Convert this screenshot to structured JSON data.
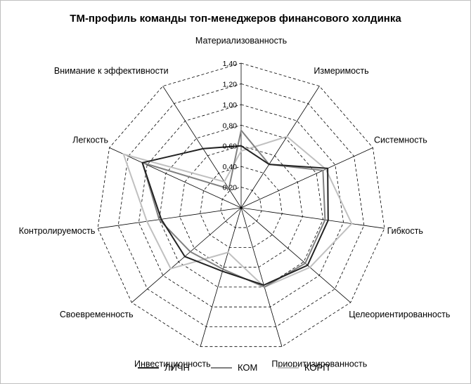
{
  "chart_data": {
    "type": "radar",
    "title": "ТМ-профиль команды топ-менеджеров финансового холдинка",
    "axes": [
      "Материализованность",
      "Измеримость",
      "Системность",
      "Гибкость",
      "Целеориентированность",
      "Приоритизированность",
      "Инвестиционность",
      "Своевременность",
      "Контролируемость",
      "Легкость",
      "Внимание к эффективности"
    ],
    "r_ticks": [
      "0,20",
      "0,40",
      "0,60",
      "0,80",
      "1,00",
      "1,20",
      "1,40"
    ],
    "r_range": [
      0,
      1.4
    ],
    "grid": true,
    "legend_position": "bottom",
    "series": [
      {
        "name": "ЛИЧН",
        "color": "#222222",
        "values": [
          0.6,
          0.5,
          0.92,
          0.85,
          0.85,
          0.78,
          0.64,
          0.72,
          0.78,
          1.05,
          0.68
        ]
      },
      {
        "name": "КОМ",
        "color": "#808080",
        "values": [
          0.75,
          0.5,
          0.87,
          0.82,
          0.82,
          0.8,
          0.62,
          0.65,
          0.8,
          1.05,
          0.22
        ]
      },
      {
        "name": "КОРП",
        "color": "#c0c0c0",
        "values": [
          0.55,
          0.82,
          0.9,
          1.08,
          0.88,
          0.8,
          0.45,
          0.9,
          0.92,
          1.25,
          0.3
        ]
      }
    ]
  }
}
